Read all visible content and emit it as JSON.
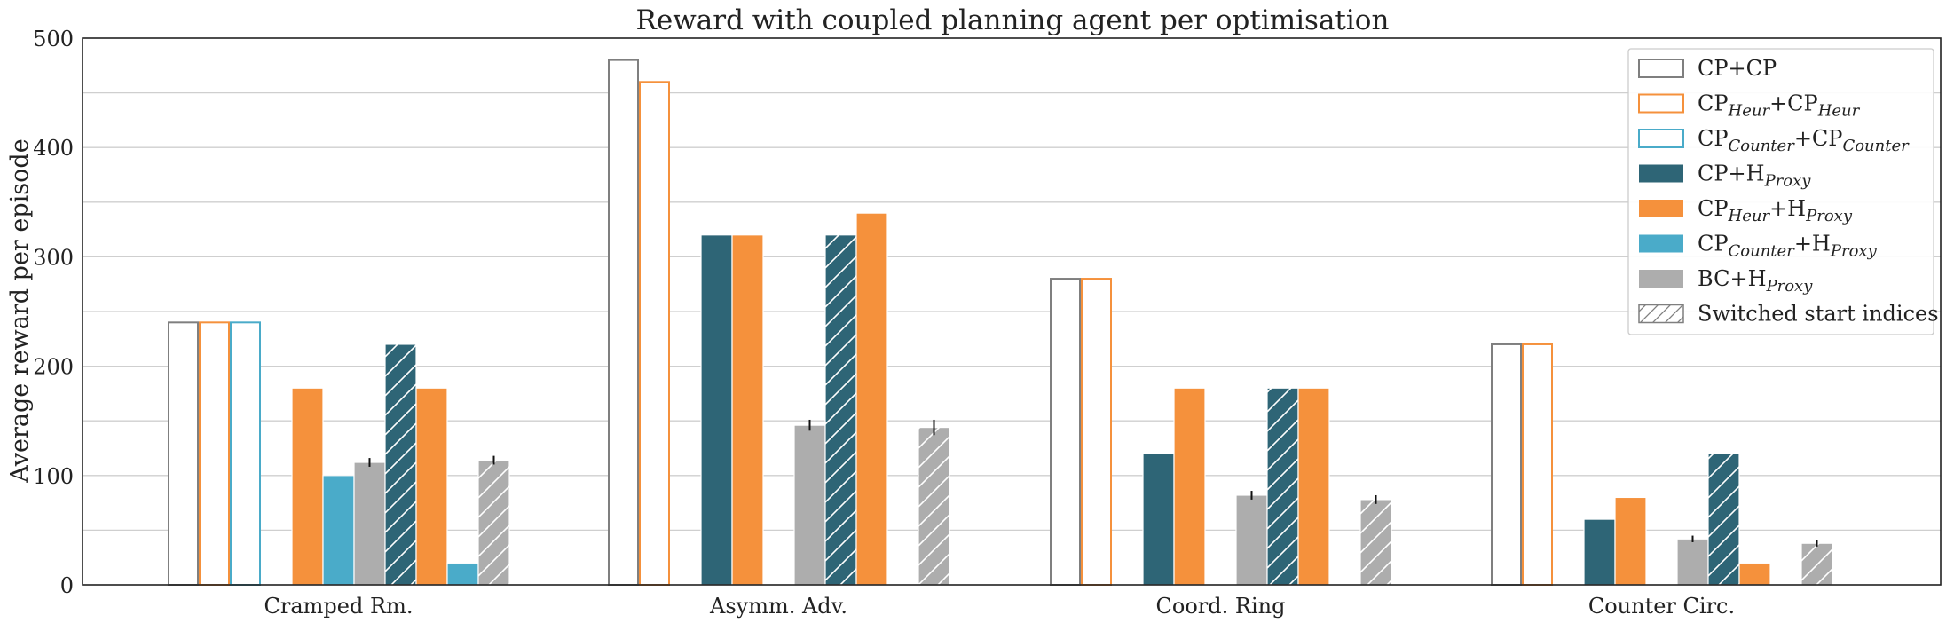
{
  "chart_data": {
    "type": "bar",
    "title": "Reward with coupled planning agent per optimisation",
    "ylabel": "Average reward per episode",
    "xlabel": "",
    "ylim": [
      0,
      500
    ],
    "yticks": [
      0,
      100,
      200,
      300,
      400,
      500
    ],
    "grid": true,
    "legend_position": "top-right",
    "categories": [
      "Cramped Rm.",
      "Asymm. Adv.",
      "Coord. Ring",
      "Counter Circ."
    ],
    "series": [
      {
        "name": "CP+CP",
        "base": "CP",
        "base_sub": "",
        "mid": "+CP",
        "mid_sub": "",
        "color": "#7f7f7f",
        "style": "outline",
        "hatched": false,
        "values": [
          240,
          480,
          280,
          220
        ],
        "errors": [
          0,
          0,
          0,
          0
        ]
      },
      {
        "name": "CPHeur+CPHeur",
        "base": "CP",
        "base_sub": "Heur",
        "mid": "+CP",
        "mid_sub": "Heur",
        "color": "#f5913c",
        "style": "outline",
        "hatched": false,
        "values": [
          240,
          460,
          280,
          220
        ],
        "errors": [
          0,
          0,
          0,
          0
        ]
      },
      {
        "name": "CPCounter+CPCounter",
        "base": "CP",
        "base_sub": "Counter",
        "mid": "+CP",
        "mid_sub": "Counter",
        "color": "#4aabc9",
        "style": "outline",
        "hatched": false,
        "values": [
          240,
          0,
          0,
          0
        ],
        "errors": [
          0,
          0,
          0,
          0
        ]
      },
      {
        "name": "CP+HProxy",
        "base": "CP",
        "base_sub": "",
        "mid": "+H",
        "mid_sub": "Proxy",
        "color": "#2e6576",
        "style": "filled",
        "hatched": false,
        "values": [
          0,
          320,
          120,
          60
        ],
        "errors": [
          0,
          0,
          0,
          0
        ]
      },
      {
        "name": "CPHeur+HProxy",
        "base": "CP",
        "base_sub": "Heur",
        "mid": "+H",
        "mid_sub": "Proxy",
        "color": "#f5913c",
        "style": "filled",
        "hatched": false,
        "values": [
          180,
          320,
          180,
          80
        ],
        "errors": [
          0,
          0,
          0,
          0
        ]
      },
      {
        "name": "CPCounter+HProxy",
        "base": "CP",
        "base_sub": "Counter",
        "mid": "+H",
        "mid_sub": "Proxy",
        "color": "#4aabc9",
        "style": "filled",
        "hatched": false,
        "values": [
          100,
          0,
          0,
          0
        ],
        "errors": [
          0,
          0,
          0,
          0
        ]
      },
      {
        "name": "BC+HProxy",
        "base": "BC",
        "base_sub": "",
        "mid": "+H",
        "mid_sub": "Proxy",
        "color": "#adadad",
        "style": "filled",
        "hatched": false,
        "values": [
          112,
          146,
          82,
          42
        ],
        "errors": [
          4,
          5,
          4,
          3
        ]
      },
      {
        "name": "CP+HProxy (switched)",
        "color": "#2e6576",
        "style": "filled",
        "hatched": true,
        "values": [
          220,
          320,
          180,
          120
        ],
        "errors": [
          0,
          0,
          0,
          0
        ]
      },
      {
        "name": "CPHeur+HProxy (switched)",
        "color": "#f5913c",
        "style": "filled",
        "hatched": false,
        "values": [
          180,
          340,
          180,
          20
        ],
        "errors": [
          0,
          0,
          0,
          0
        ]
      },
      {
        "name": "CPCounter+HProxy (switched)",
        "color": "#4aabc9",
        "style": "filled",
        "hatched": false,
        "values": [
          20,
          0,
          0,
          0
        ],
        "errors": [
          0,
          0,
          0,
          0
        ]
      },
      {
        "name": "BC+HProxy (switched)",
        "color": "#adadad",
        "style": "filled",
        "hatched": true,
        "values": [
          114,
          144,
          78,
          38
        ],
        "errors": [
          4,
          7,
          4,
          3
        ]
      }
    ],
    "legend_entries": [
      {
        "series_index": 0
      },
      {
        "series_index": 1
      },
      {
        "series_index": 2
      },
      {
        "series_index": 3
      },
      {
        "series_index": 4
      },
      {
        "series_index": 5
      },
      {
        "series_index": 6
      },
      {
        "label": "Switched start indices",
        "color": "#7f7f7f",
        "style": "hatch-outline"
      }
    ]
  }
}
